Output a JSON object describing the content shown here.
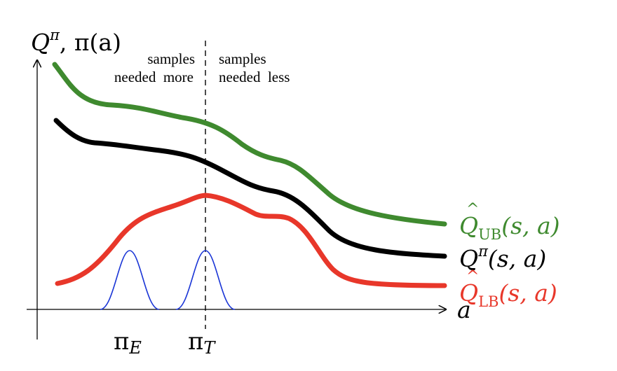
{
  "axes": {
    "y_label": {
      "main": "Q",
      "sup": "π",
      "rest": ", π(a)"
    },
    "x_label": "a"
  },
  "annotations": {
    "left": [
      "samples",
      "needed  more"
    ],
    "right": [
      "samples",
      "needed  less"
    ]
  },
  "policies": [
    {
      "name": "π",
      "sub": "E"
    },
    {
      "name": "π",
      "sub": "T"
    }
  ],
  "curves": {
    "ub": {
      "base": "Q",
      "hat": "^",
      "sub": "UB",
      "args": "(s, a)",
      "color": "#3f8a2f"
    },
    "q": {
      "base": "Q",
      "sup": "π",
      "args": "(s, a)",
      "color": "#000000"
    },
    "lb": {
      "base": "Q",
      "hat": "^",
      "sub": "LB",
      "args": "(s, a)",
      "color": "#e8372a"
    }
  },
  "peak_color": "#1a35d6"
}
